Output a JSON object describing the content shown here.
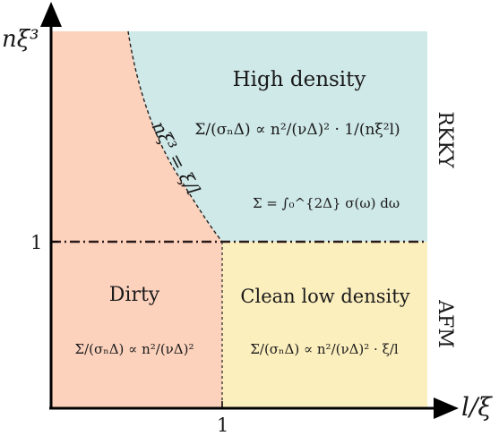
{
  "axes": {
    "x_label": "l/ξ",
    "y_label": "nξ³",
    "x_tick": "1",
    "y_tick": "1"
  },
  "regions": {
    "high_density": {
      "title": "High density",
      "formula": "Σ/(σₙΔ) ∝ n²/(νΔ)² · 1/(nξ²l)",
      "color": "#cfe8e8"
    },
    "sum_rule": {
      "formula": "Σ = ∫₀^{2Δ} σ(ω) dω"
    },
    "dirty": {
      "title": "Dirty",
      "formula": "Σ/(σₙΔ) ∝ n²/(νΔ)²",
      "color": "#fcd2bd"
    },
    "clean_low": {
      "title": "Clean low density",
      "formula": "Σ/(σₙΔ) ∝ n²/(νΔ)² · ξ/l",
      "color": "#fcefbe"
    }
  },
  "boundary_curve": {
    "label": "nξ³ = ξ/l"
  },
  "side_labels": {
    "upper": "RKKY",
    "lower": "AFM"
  }
}
